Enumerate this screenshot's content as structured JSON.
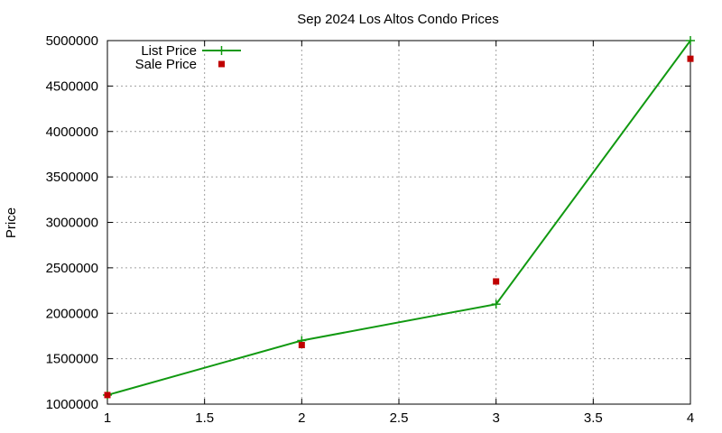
{
  "chart_data": {
    "type": "line",
    "title": "Sep 2024 Los Altos Condo Prices",
    "xlabel": "",
    "ylabel": "Price",
    "xlim": [
      1,
      4
    ],
    "ylim": [
      1000000,
      5000000
    ],
    "x_ticks": [
      1,
      1.5,
      2,
      2.5,
      3,
      3.5,
      4
    ],
    "x_tick_labels": [
      "1",
      "1.5",
      "2",
      "2.5",
      "3",
      "3.5",
      "4"
    ],
    "y_ticks": [
      1000000,
      1500000,
      2000000,
      2500000,
      3000000,
      3500000,
      4000000,
      4500000,
      5000000
    ],
    "y_tick_labels": [
      "1000000",
      "1500000",
      "2000000",
      "2500000",
      "3000000",
      "3500000",
      "4000000",
      "4500000",
      "5000000"
    ],
    "grid": true,
    "legend_position": "top-left",
    "series": [
      {
        "name": "List Price",
        "style": "line-with-plus-markers",
        "color": "#119911",
        "x": [
          1,
          2,
          3,
          4
        ],
        "values": [
          1100000,
          1700000,
          2100000,
          5000000
        ]
      },
      {
        "name": "Sale Price",
        "style": "square-markers",
        "color": "#c00000",
        "x": [
          1,
          2,
          3,
          4
        ],
        "values": [
          1100000,
          1650000,
          2350000,
          4800000
        ]
      }
    ]
  }
}
